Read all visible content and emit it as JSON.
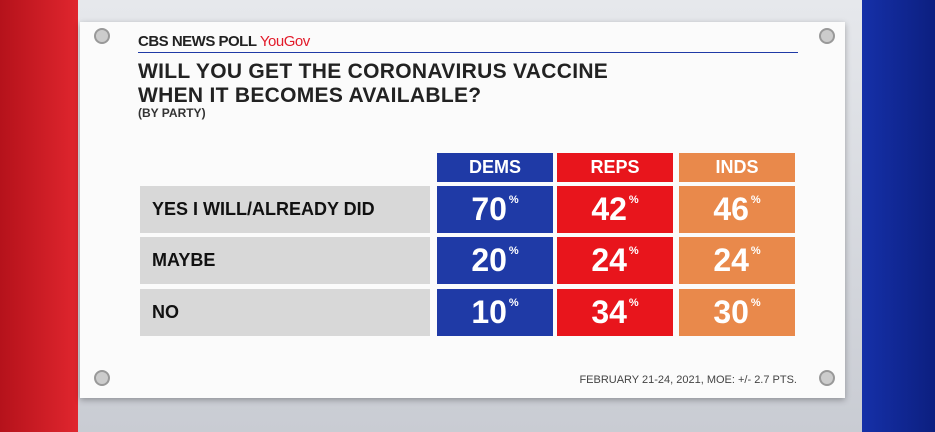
{
  "header": {
    "brand": "CBS NEWS POLL",
    "partner": "YouGov"
  },
  "title": [
    "WILL YOU GET THE CORONAVIRUS VACCINE",
    "WHEN IT BECOMES AVAILABLE?"
  ],
  "subtitle": "(BY PARTY)",
  "table": {
    "columns": [
      {
        "name": "DEMS",
        "color": "#1f3aa6"
      },
      {
        "name": "REPS",
        "color": "#e8151c"
      },
      {
        "name": "INDS",
        "color": "#e9894b"
      }
    ],
    "unit": "%",
    "rows": [
      {
        "label": "YES I WILL/ALREADY DID",
        "values": [
          70,
          42,
          46
        ]
      },
      {
        "label": "MAYBE",
        "values": [
          20,
          24,
          24
        ]
      },
      {
        "label": "NO",
        "values": [
          10,
          34,
          30
        ]
      }
    ]
  },
  "footer": "FEBRUARY 21-24, 2021, MOE: +/- 2.7 PTS."
}
